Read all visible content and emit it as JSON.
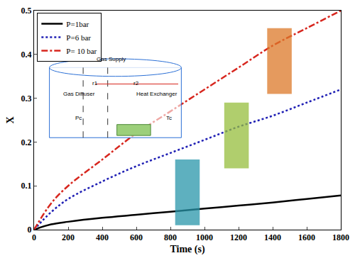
{
  "chart_data": {
    "type": "line",
    "x_label": "Time (s)",
    "y_label": "X",
    "x": [
      0,
      100,
      200,
      400,
      600,
      800,
      1000,
      1200,
      1400,
      1600,
      1800
    ],
    "series": [
      {
        "name": "P=1bar",
        "color": "#000000",
        "line_style": "solid",
        "values": [
          0,
          0.012,
          0.018,
          0.027,
          0.034,
          0.041,
          0.048,
          0.055,
          0.062,
          0.07,
          0.078
        ]
      },
      {
        "name": "P=6 bar",
        "color": "#1f1fb4",
        "line_style": "dot",
        "values": [
          0,
          0.04,
          0.07,
          0.11,
          0.145,
          0.175,
          0.205,
          0.235,
          0.26,
          0.29,
          0.32
        ]
      },
      {
        "name": "P= 10 bar",
        "color": "#d7261e",
        "line_style": "dashdot",
        "values": [
          0,
          0.06,
          0.1,
          0.16,
          0.22,
          0.27,
          0.32,
          0.37,
          0.42,
          0.46,
          0.5
        ]
      }
    ],
    "xlim": [
      0,
      1800
    ],
    "xticks": [
      0,
      200,
      400,
      600,
      800,
      1000,
      1200,
      1400,
      1600,
      1800
    ],
    "ylim": [
      0,
      0.5
    ],
    "yticks": [
      0,
      0.1,
      0.2,
      0.3,
      0.4,
      0.5
    ],
    "grid": false,
    "legend": "upper left",
    "annotations": [
      {
        "text": "Gas Supply"
      },
      {
        "text": "Gas Diffuser"
      },
      {
        "text": "Heat Exchanger"
      },
      {
        "text": "r1"
      },
      {
        "text": "r2"
      },
      {
        "text": "Pc"
      },
      {
        "text": "Tc"
      }
    ]
  }
}
